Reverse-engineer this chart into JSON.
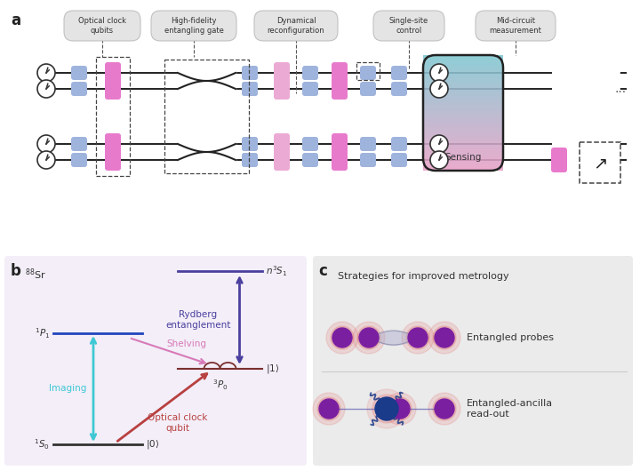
{
  "bg_color": "#ffffff",
  "panel_b_bg": "#f3eef8",
  "panel_c_bg": "#ebebeb",
  "blue_qubit": "#9fb4dd",
  "pink_gate": "#e87acc",
  "light_blue_sq": "#b8cee8",
  "light_pink_sq": "#ebaad4",
  "top_labels": [
    "Optical clock\nqubits",
    "High-fidelity\nentangling gate",
    "Dynamical\nreconfiguration",
    "Single-site\ncontrol",
    "Mid-circuit\nmeasurement"
  ],
  "rydberg_color": "#4a3f9e",
  "imaging_color": "#3ec8d4",
  "shelving_color": "#d87ab8",
  "clock_color": "#b84040",
  "p1_color": "#2244bb",
  "probe_color": "#7a1fa0",
  "ancilla_color": "#1a3a8a",
  "wire_color": "#222222",
  "label_gray": "#555555"
}
